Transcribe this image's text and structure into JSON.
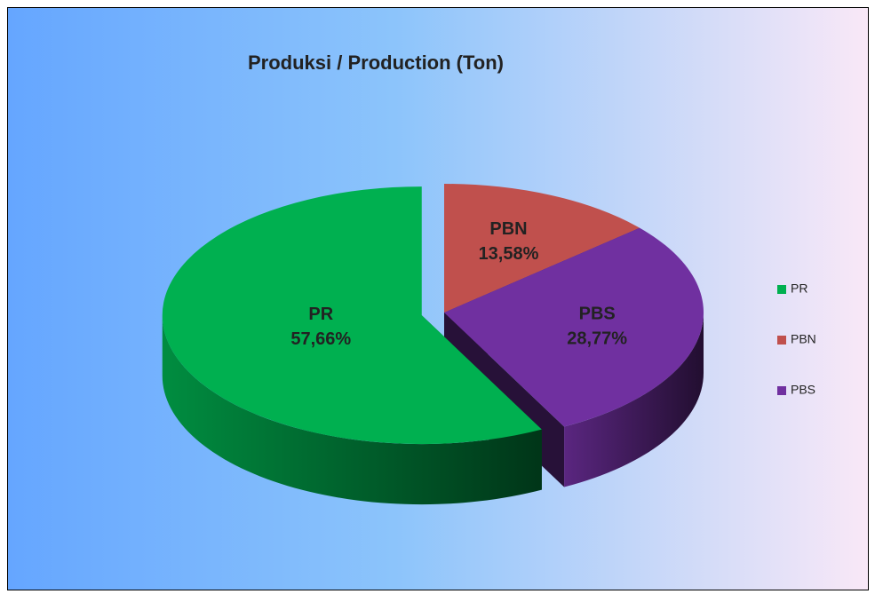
{
  "chart_data": {
    "type": "pie",
    "title": "Produksi / Production (Ton)",
    "categories": [
      "PBN",
      "PBS",
      "PR"
    ],
    "values": [
      13.58,
      28.77,
      57.66
    ],
    "value_labels": [
      "13,58%",
      "28,77%",
      "57,66%"
    ],
    "colors": [
      "#c0504d",
      "#7030a0",
      "#00b050"
    ],
    "legend": {
      "position": "right",
      "order": [
        "PR",
        "PBN",
        "PBS"
      ]
    }
  }
}
